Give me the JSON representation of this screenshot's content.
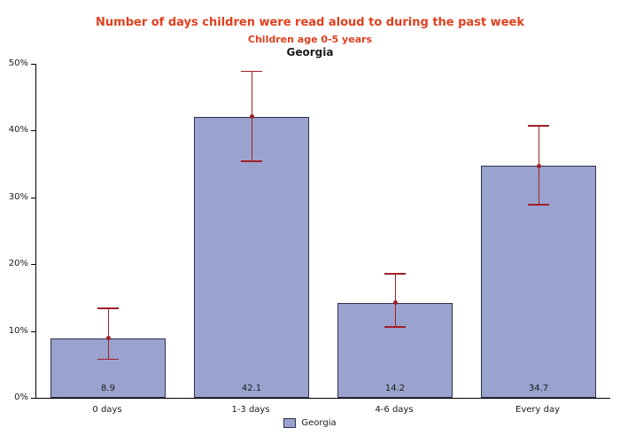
{
  "colors": {
    "title": "#e0401f",
    "bar_fill": "#9aa3ce",
    "bar_border": "#30304f",
    "error_bar": "#a02028",
    "axis": "#000000"
  },
  "chart_data": {
    "type": "bar",
    "title": "Number of days children were read aloud to during the past week",
    "subtitle": "Children age 0-5 years",
    "region": "Georgia",
    "categories": [
      "0 days",
      "1-3 days",
      "4-6 days",
      "Every day"
    ],
    "series": [
      {
        "name": "Georgia",
        "values": [
          8.9,
          42.1,
          14.2,
          34.7
        ]
      }
    ],
    "value_labels": [
      "8.9",
      "42.1",
      "14.2",
      "34.7"
    ],
    "error_bars": [
      {
        "low": 5.9,
        "high": 13.5
      },
      {
        "low": 35.5,
        "high": 49.0
      },
      {
        "low": 10.7,
        "high": 18.7
      },
      {
        "low": 29.0,
        "high": 40.8
      }
    ],
    "ylim": [
      0,
      50
    ],
    "yticks": [
      0,
      10,
      20,
      30,
      40,
      50
    ],
    "ytick_suffix": "%",
    "xlabel": "",
    "ylabel": "",
    "grid": false,
    "legend": {
      "position": "bottom",
      "entries": [
        "Georgia"
      ]
    }
  }
}
